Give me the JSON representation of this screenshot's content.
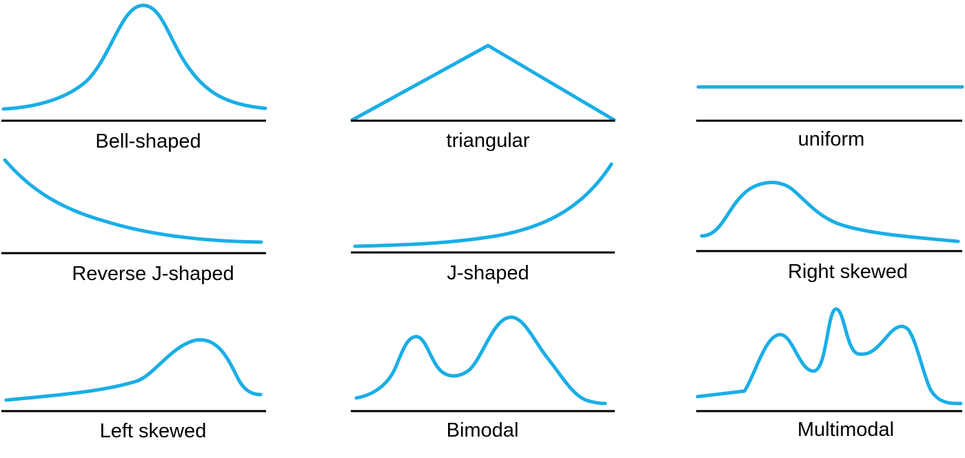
{
  "colors": {
    "curve": "#19aee6",
    "baseline": "#000000",
    "background": "#ffffff"
  },
  "shapes": [
    {
      "label": "Bell-shaped"
    },
    {
      "label": "triangular"
    },
    {
      "label": "uniform"
    },
    {
      "label": "Reverse J-shaped"
    },
    {
      "label": "J-shaped"
    },
    {
      "label": "Right skewed"
    },
    {
      "label": "Left skewed"
    },
    {
      "label": "Bimodal"
    },
    {
      "label": "Multimodal"
    }
  ]
}
